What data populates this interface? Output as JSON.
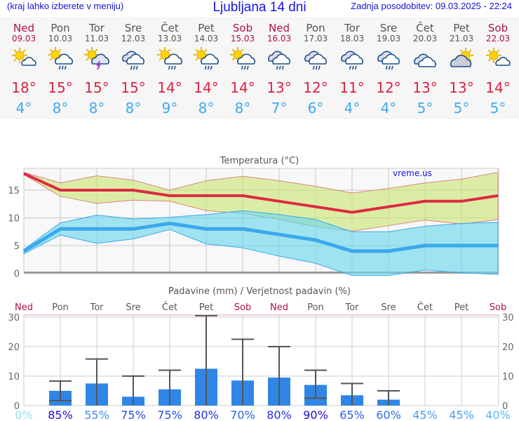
{
  "header": {
    "region_hint": "(kraj lahko izberete v meniju)",
    "title": "Ljubljana 14 dni",
    "updated": "Zadnja posodobitev: 09.03.2025 - 22:24"
  },
  "days": [
    {
      "day": "Ned",
      "date": "09.03",
      "weekend": true,
      "icon": "sun-cloud",
      "max": "18°",
      "min": "4°"
    },
    {
      "day": "Pon",
      "date": "10.03",
      "weekend": false,
      "icon": "sun-cloud-rain",
      "max": "15°",
      "min": "8°"
    },
    {
      "day": "Tor",
      "date": "11.03",
      "weekend": false,
      "icon": "sun-cloud-thunder",
      "max": "15°",
      "min": "8°"
    },
    {
      "day": "Sre",
      "date": "12.03",
      "weekend": false,
      "icon": "cloud-rain",
      "max": "15°",
      "min": "8°"
    },
    {
      "day": "Čet",
      "date": "13.03",
      "weekend": false,
      "icon": "sun-cloud-rain",
      "max": "14°",
      "min": "9°"
    },
    {
      "day": "Pet",
      "date": "14.03",
      "weekend": false,
      "icon": "sun-cloud-rain",
      "max": "14°",
      "min": "8°"
    },
    {
      "day": "Sob",
      "date": "15.03",
      "weekend": true,
      "icon": "sun-cloud-rain",
      "max": "14°",
      "min": "8°"
    },
    {
      "day": "Ned",
      "date": "16.03",
      "weekend": true,
      "icon": "cloud-rain",
      "max": "13°",
      "min": "7°"
    },
    {
      "day": "Pon",
      "date": "17.03",
      "weekend": false,
      "icon": "cloud-rain",
      "max": "12°",
      "min": "6°"
    },
    {
      "day": "Tor",
      "date": "18.03",
      "weekend": false,
      "icon": "cloud-rain",
      "max": "11°",
      "min": "4°"
    },
    {
      "day": "Sre",
      "date": "19.03",
      "weekend": false,
      "icon": "cloud-rain",
      "max": "12°",
      "min": "4°"
    },
    {
      "day": "Čet",
      "date": "20.03",
      "weekend": false,
      "icon": "cloud",
      "max": "13°",
      "min": "5°"
    },
    {
      "day": "Pet",
      "date": "21.03",
      "weekend": false,
      "icon": "cloud-sun",
      "max": "13°",
      "min": "5°"
    },
    {
      "day": "Sob",
      "date": "22.03",
      "weekend": true,
      "icon": "sun-cloud",
      "max": "14°",
      "min": "5°"
    }
  ],
  "chart_data": [
    {
      "type": "line",
      "title": "Temperatura (°C)",
      "watermark": "vreme.us",
      "ylim": [
        0,
        18.5
      ],
      "yticks": [
        0,
        5,
        10,
        15
      ],
      "series": [
        {
          "name": "max",
          "color": "#dd2a44",
          "values": [
            18,
            15,
            15,
            15,
            14,
            14,
            14,
            13,
            12,
            11,
            12,
            13,
            13,
            14
          ]
        },
        {
          "name": "max_upper",
          "values": [
            18.2,
            16.3,
            17.6,
            16.8,
            15,
            16.7,
            17.5,
            16.7,
            15.7,
            14.5,
            15.3,
            16.3,
            17,
            18.2
          ]
        },
        {
          "name": "max_lower",
          "values": [
            17.8,
            13.9,
            12.6,
            13.2,
            13,
            11.3,
            10.8,
            9.7,
            8.4,
            7.6,
            8.6,
            9.6,
            8.9,
            9.7
          ]
        },
        {
          "name": "min",
          "color": "#3aa8ec",
          "values": [
            4,
            8,
            8,
            8,
            9,
            8,
            8,
            7,
            6,
            4,
            4,
            5,
            5,
            5
          ]
        },
        {
          "name": "min_upper",
          "values": [
            4.3,
            9.1,
            10.5,
            9.8,
            10.1,
            10.6,
            11.3,
            10.6,
            9.7,
            7.5,
            7.5,
            8.5,
            9,
            9.2
          ]
        },
        {
          "name": "min_lower",
          "values": [
            3.5,
            6.9,
            5.4,
            6.2,
            7.9,
            5.3,
            4.6,
            3.1,
            1.8,
            -0.4,
            -0.4,
            0.6,
            0.1,
            -0.2
          ]
        }
      ]
    },
    {
      "type": "bar",
      "title": "Padavine (mm) / Verjetnost padavin (%)",
      "ylim": [
        0,
        30
      ],
      "yticks": [
        0,
        10,
        20,
        30
      ],
      "categories": [
        "Ned",
        "Pon",
        "Tor",
        "Sre",
        "Čet",
        "Pet",
        "Sob",
        "Ned",
        "Pon",
        "Tor",
        "Sre",
        "Čet",
        "Pet",
        "Sob"
      ],
      "values": [
        0,
        5,
        7.5,
        3,
        5.5,
        12.5,
        8.5,
        9.5,
        7,
        3.5,
        2,
        0,
        0,
        0
      ],
      "err_low": [
        null,
        1.7,
        0,
        0,
        0,
        0,
        0,
        0,
        2.5,
        0,
        0,
        null,
        null,
        null
      ],
      "err_high": [
        null,
        8.3,
        15.8,
        10,
        12,
        31,
        22.5,
        20,
        12,
        7.5,
        5,
        null,
        null,
        null
      ],
      "probability": [
        "0%",
        "85%",
        "55%",
        "75%",
        "75%",
        "80%",
        "70%",
        "80%",
        "90%",
        "65%",
        "60%",
        "45%",
        "45%",
        "40%"
      ],
      "probability_colors": [
        "#8ee0f0",
        "#1a0fd0",
        "#3f8ef0",
        "#2050e0",
        "#2050e0",
        "#2030e0",
        "#2a5fe8",
        "#2030e0",
        "#1a0fd0",
        "#3060e8",
        "#3070e8",
        "#4aa0f0",
        "#4aa0f0",
        "#5ab8f5"
      ]
    }
  ]
}
